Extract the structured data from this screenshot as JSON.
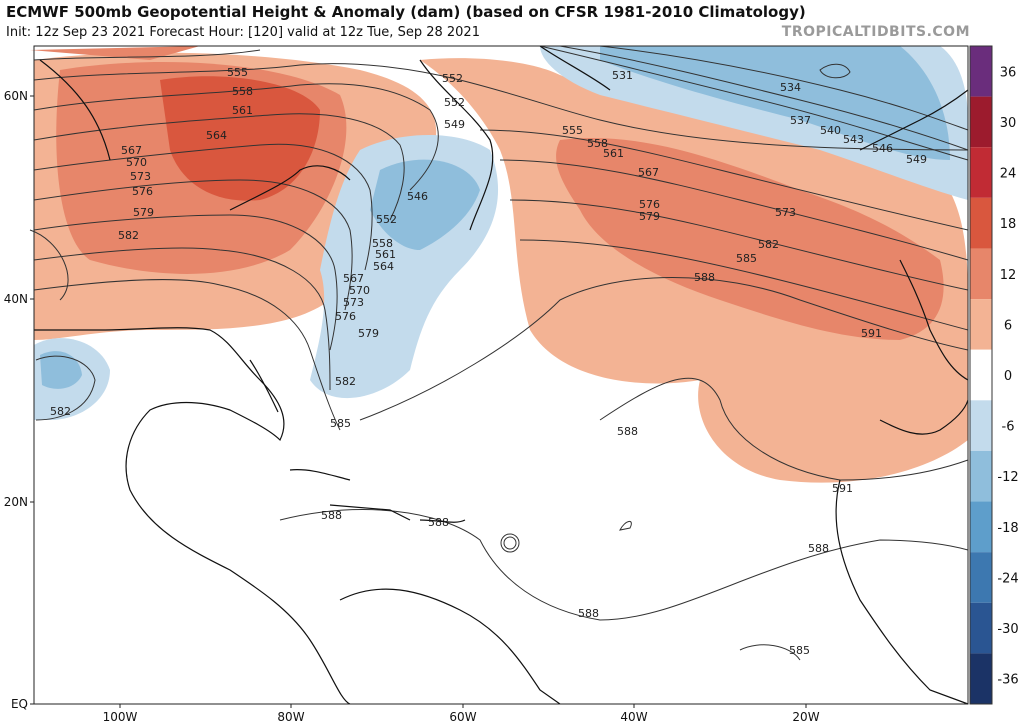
{
  "header": {
    "title": "ECMWF 500mb Geopotential Height & Anomaly (dam) (based on CFSR 1981-2010 Climatology)",
    "subtitle": "Init: 12z Sep 23 2021   Forecast Hour: [120]   valid at 12z Tue, Sep 28 2021",
    "brand": "TROPICALTIDBITS.COM"
  },
  "axes": {
    "lat_labels": [
      "60N",
      "40N",
      "20N",
      "EQ"
    ],
    "lon_labels": [
      "100W",
      "80W",
      "60W",
      "40W",
      "20W"
    ]
  },
  "colorbar": {
    "labels": [
      "36",
      "30",
      "24",
      "18",
      "12",
      "6",
      "0",
      "-6",
      "-12",
      "-18",
      "-24",
      "-30",
      "-36"
    ],
    "colors": [
      "#6a2d7c",
      "#9c1b2d",
      "#c12b34",
      "#d9573e",
      "#e7866a",
      "#f3b394",
      "#ffffff",
      "#c3dbec",
      "#8fbedc",
      "#5e9ecb",
      "#3d78b0",
      "#2a5592",
      "#1b3366"
    ]
  },
  "contour_labels": {
    "items": [
      "555",
      "558",
      "561",
      "564",
      "567",
      "570",
      "573",
      "576",
      "579",
      "582",
      "552",
      "552",
      "549",
      "546",
      "552",
      "558",
      "561",
      "564",
      "567",
      "570",
      "573",
      "576",
      "579",
      "582",
      "585",
      "531",
      "534",
      "537",
      "540",
      "543",
      "546",
      "549",
      "555",
      "558",
      "561",
      "567",
      "576",
      "579",
      "573",
      "582",
      "585",
      "588",
      "591",
      "582",
      "588",
      "588",
      "588",
      "591",
      "588",
      "588",
      "585"
    ]
  },
  "colors": {
    "warm_anomaly": "#f0a585",
    "strong_warm": "#e06a4f",
    "cold_anomaly": "#8cbcdc",
    "strong_cold": "#5e9ecb",
    "contour": "#333333",
    "coast": "#111111"
  }
}
